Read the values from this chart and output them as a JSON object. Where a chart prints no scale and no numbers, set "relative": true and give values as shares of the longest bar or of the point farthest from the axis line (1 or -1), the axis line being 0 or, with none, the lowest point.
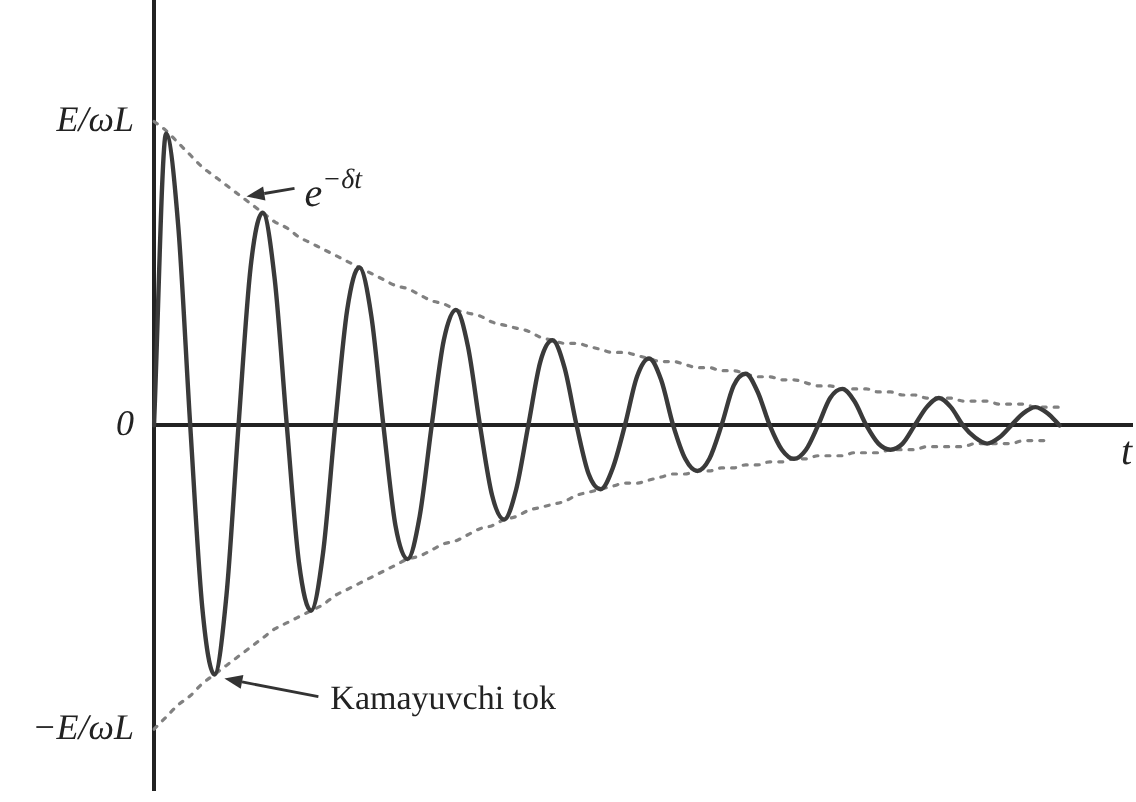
{
  "chart_data": {
    "type": "line",
    "xlabel": "t",
    "relative": true,
    "categories": [
      null,
      null,
      null,
      null,
      null,
      null,
      null,
      null,
      null,
      null,
      null,
      null,
      null,
      null,
      null,
      null,
      null,
      null,
      null,
      null,
      null,
      null,
      null,
      null,
      null,
      null,
      null,
      null,
      null,
      null,
      null,
      null,
      null,
      null,
      null,
      null,
      null,
      null,
      null,
      null,
      null,
      null,
      null,
      null,
      null,
      null,
      null,
      null,
      null,
      null,
      null,
      null,
      null,
      null,
      null,
      null,
      null,
      null,
      null,
      null,
      null,
      null,
      null,
      null,
      null,
      null,
      null,
      null,
      null,
      null,
      null,
      null,
      null,
      null,
      null,
      null,
      null,
      null,
      null,
      null,
      null,
      null
    ],
    "series": [
      {
        "color": "#3a3a3a",
        "values": [
          0,
          0.96,
          0.66,
          0,
          -0.6,
          -0.82,
          -0.56,
          0,
          0.52,
          0.7,
          0.48,
          0,
          -0.45,
          -0.61,
          -0.42,
          0,
          0.38,
          0.52,
          0.36,
          0,
          -0.33,
          -0.44,
          -0.3,
          0,
          0.28,
          0.38,
          0.26,
          0,
          -0.23,
          -0.31,
          -0.21,
          0,
          0.21,
          0.28,
          0.19,
          0,
          -0.16,
          -0.21,
          -0.14,
          0,
          0.16,
          0.22,
          0.15,
          0,
          -0.11,
          -0.15,
          -0.11,
          0,
          0.13,
          0.17,
          0.11,
          0,
          -0.08,
          -0.11,
          -0.08,
          0,
          0.09,
          0.12,
          0.08,
          0,
          -0.06,
          -0.08,
          -0.06,
          0,
          0.06,
          0.09,
          0.06,
          0,
          -0.04,
          -0.06,
          -0.04,
          0,
          0.04,
          0.06,
          0.04,
          0,
          null,
          null,
          null,
          null,
          null,
          null
        ]
      },
      {
        "color": "#808080",
        "line_style": "dotted",
        "values": [
          1,
          0.97,
          0.93,
          0.89,
          0.85,
          0.82,
          0.79,
          0.76,
          0.73,
          0.7,
          0.67,
          0.65,
          0.62,
          0.6,
          0.58,
          0.56,
          0.54,
          0.52,
          0.5,
          0.48,
          0.46,
          0.45,
          0.43,
          0.41,
          0.4,
          0.38,
          0.37,
          0.36,
          0.34,
          0.33,
          0.32,
          0.31,
          0.29,
          0.28,
          0.27,
          0.27,
          0.26,
          0.25,
          0.24,
          0.24,
          0.23,
          0.22,
          0.21,
          0.21,
          0.2,
          0.19,
          0.19,
          0.18,
          0.18,
          0.17,
          0.16,
          0.16,
          0.15,
          0.15,
          0.14,
          0.13,
          0.13,
          0.12,
          0.12,
          0.12,
          0.11,
          0.11,
          0.1,
          0.1,
          0.09,
          0.09,
          0.09,
          0.08,
          0.08,
          0.08,
          0.07,
          0.07,
          0.07,
          0.06,
          0.06,
          0.06,
          null,
          null,
          null,
          null,
          null,
          null
        ]
      },
      {
        "color": "#808080",
        "line_style": "dotted",
        "values": [
          -1,
          -0.96,
          -0.92,
          -0.89,
          -0.85,
          -0.82,
          -0.79,
          -0.76,
          -0.73,
          -0.7,
          -0.67,
          -0.65,
          -0.63,
          -0.61,
          -0.59,
          -0.56,
          -0.54,
          -0.52,
          -0.5,
          -0.48,
          -0.46,
          -0.44,
          -0.43,
          -0.41,
          -0.39,
          -0.38,
          -0.36,
          -0.34,
          -0.33,
          -0.31,
          -0.3,
          -0.28,
          -0.27,
          -0.26,
          -0.25,
          -0.23,
          -0.22,
          -0.21,
          -0.2,
          -0.19,
          -0.19,
          -0.18,
          -0.17,
          -0.16,
          -0.16,
          -0.15,
          -0.15,
          -0.14,
          -0.14,
          -0.13,
          -0.13,
          -0.12,
          -0.12,
          -0.11,
          -0.11,
          -0.1,
          -0.1,
          -0.1,
          -0.09,
          -0.09,
          -0.09,
          -0.08,
          -0.08,
          -0.08,
          -0.07,
          -0.07,
          -0.07,
          -0.07,
          -0.06,
          -0.06,
          -0.06,
          -0.06,
          -0.05,
          -0.05,
          -0.05,
          null,
          null,
          null,
          null,
          null,
          null,
          null
        ]
      }
    ],
    "annotations": [
      "E/ωL",
      "0",
      "−E/ωL",
      "e$^{−δt}$",
      "Kamayuvchi tok"
    ],
    "grid": false,
    "legend": false,
    "marker": "none"
  }
}
